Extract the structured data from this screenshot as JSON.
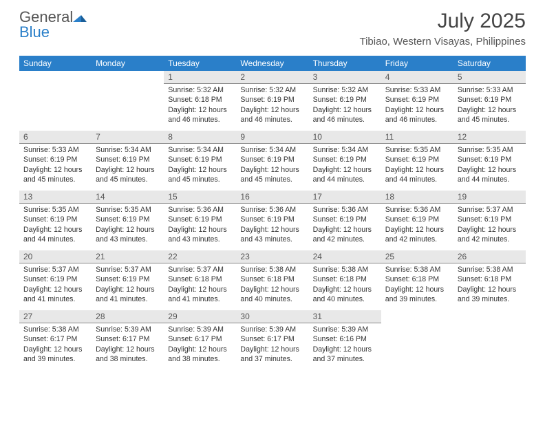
{
  "brand": {
    "name1": "General",
    "name2": "Blue",
    "text_color": "#555555",
    "accent_color": "#2a7fc9"
  },
  "title": "July 2025",
  "subtitle": "Tibiao, Western Visayas, Philippines",
  "header_bg": "#2a7fc9",
  "header_fg": "#ffffff",
  "daynum_bg": "#e8e8e8",
  "day_names": [
    "Sunday",
    "Monday",
    "Tuesday",
    "Wednesday",
    "Thursday",
    "Friday",
    "Saturday"
  ],
  "weeks": [
    [
      {
        "n": "",
        "sr": "",
        "ss": "",
        "dl": ""
      },
      {
        "n": "",
        "sr": "",
        "ss": "",
        "dl": ""
      },
      {
        "n": "1",
        "sr": "Sunrise: 5:32 AM",
        "ss": "Sunset: 6:18 PM",
        "dl": "Daylight: 12 hours and 46 minutes."
      },
      {
        "n": "2",
        "sr": "Sunrise: 5:32 AM",
        "ss": "Sunset: 6:19 PM",
        "dl": "Daylight: 12 hours and 46 minutes."
      },
      {
        "n": "3",
        "sr": "Sunrise: 5:32 AM",
        "ss": "Sunset: 6:19 PM",
        "dl": "Daylight: 12 hours and 46 minutes."
      },
      {
        "n": "4",
        "sr": "Sunrise: 5:33 AM",
        "ss": "Sunset: 6:19 PM",
        "dl": "Daylight: 12 hours and 46 minutes."
      },
      {
        "n": "5",
        "sr": "Sunrise: 5:33 AM",
        "ss": "Sunset: 6:19 PM",
        "dl": "Daylight: 12 hours and 45 minutes."
      }
    ],
    [
      {
        "n": "6",
        "sr": "Sunrise: 5:33 AM",
        "ss": "Sunset: 6:19 PM",
        "dl": "Daylight: 12 hours and 45 minutes."
      },
      {
        "n": "7",
        "sr": "Sunrise: 5:34 AM",
        "ss": "Sunset: 6:19 PM",
        "dl": "Daylight: 12 hours and 45 minutes."
      },
      {
        "n": "8",
        "sr": "Sunrise: 5:34 AM",
        "ss": "Sunset: 6:19 PM",
        "dl": "Daylight: 12 hours and 45 minutes."
      },
      {
        "n": "9",
        "sr": "Sunrise: 5:34 AM",
        "ss": "Sunset: 6:19 PM",
        "dl": "Daylight: 12 hours and 45 minutes."
      },
      {
        "n": "10",
        "sr": "Sunrise: 5:34 AM",
        "ss": "Sunset: 6:19 PM",
        "dl": "Daylight: 12 hours and 44 minutes."
      },
      {
        "n": "11",
        "sr": "Sunrise: 5:35 AM",
        "ss": "Sunset: 6:19 PM",
        "dl": "Daylight: 12 hours and 44 minutes."
      },
      {
        "n": "12",
        "sr": "Sunrise: 5:35 AM",
        "ss": "Sunset: 6:19 PM",
        "dl": "Daylight: 12 hours and 44 minutes."
      }
    ],
    [
      {
        "n": "13",
        "sr": "Sunrise: 5:35 AM",
        "ss": "Sunset: 6:19 PM",
        "dl": "Daylight: 12 hours and 44 minutes."
      },
      {
        "n": "14",
        "sr": "Sunrise: 5:35 AM",
        "ss": "Sunset: 6:19 PM",
        "dl": "Daylight: 12 hours and 43 minutes."
      },
      {
        "n": "15",
        "sr": "Sunrise: 5:36 AM",
        "ss": "Sunset: 6:19 PM",
        "dl": "Daylight: 12 hours and 43 minutes."
      },
      {
        "n": "16",
        "sr": "Sunrise: 5:36 AM",
        "ss": "Sunset: 6:19 PM",
        "dl": "Daylight: 12 hours and 43 minutes."
      },
      {
        "n": "17",
        "sr": "Sunrise: 5:36 AM",
        "ss": "Sunset: 6:19 PM",
        "dl": "Daylight: 12 hours and 42 minutes."
      },
      {
        "n": "18",
        "sr": "Sunrise: 5:36 AM",
        "ss": "Sunset: 6:19 PM",
        "dl": "Daylight: 12 hours and 42 minutes."
      },
      {
        "n": "19",
        "sr": "Sunrise: 5:37 AM",
        "ss": "Sunset: 6:19 PM",
        "dl": "Daylight: 12 hours and 42 minutes."
      }
    ],
    [
      {
        "n": "20",
        "sr": "Sunrise: 5:37 AM",
        "ss": "Sunset: 6:19 PM",
        "dl": "Daylight: 12 hours and 41 minutes."
      },
      {
        "n": "21",
        "sr": "Sunrise: 5:37 AM",
        "ss": "Sunset: 6:19 PM",
        "dl": "Daylight: 12 hours and 41 minutes."
      },
      {
        "n": "22",
        "sr": "Sunrise: 5:37 AM",
        "ss": "Sunset: 6:18 PM",
        "dl": "Daylight: 12 hours and 41 minutes."
      },
      {
        "n": "23",
        "sr": "Sunrise: 5:38 AM",
        "ss": "Sunset: 6:18 PM",
        "dl": "Daylight: 12 hours and 40 minutes."
      },
      {
        "n": "24",
        "sr": "Sunrise: 5:38 AM",
        "ss": "Sunset: 6:18 PM",
        "dl": "Daylight: 12 hours and 40 minutes."
      },
      {
        "n": "25",
        "sr": "Sunrise: 5:38 AM",
        "ss": "Sunset: 6:18 PM",
        "dl": "Daylight: 12 hours and 39 minutes."
      },
      {
        "n": "26",
        "sr": "Sunrise: 5:38 AM",
        "ss": "Sunset: 6:18 PM",
        "dl": "Daylight: 12 hours and 39 minutes."
      }
    ],
    [
      {
        "n": "27",
        "sr": "Sunrise: 5:38 AM",
        "ss": "Sunset: 6:17 PM",
        "dl": "Daylight: 12 hours and 39 minutes."
      },
      {
        "n": "28",
        "sr": "Sunrise: 5:39 AM",
        "ss": "Sunset: 6:17 PM",
        "dl": "Daylight: 12 hours and 38 minutes."
      },
      {
        "n": "29",
        "sr": "Sunrise: 5:39 AM",
        "ss": "Sunset: 6:17 PM",
        "dl": "Daylight: 12 hours and 38 minutes."
      },
      {
        "n": "30",
        "sr": "Sunrise: 5:39 AM",
        "ss": "Sunset: 6:17 PM",
        "dl": "Daylight: 12 hours and 37 minutes."
      },
      {
        "n": "31",
        "sr": "Sunrise: 5:39 AM",
        "ss": "Sunset: 6:16 PM",
        "dl": "Daylight: 12 hours and 37 minutes."
      },
      {
        "n": "",
        "sr": "",
        "ss": "",
        "dl": ""
      },
      {
        "n": "",
        "sr": "",
        "ss": "",
        "dl": ""
      }
    ]
  ]
}
